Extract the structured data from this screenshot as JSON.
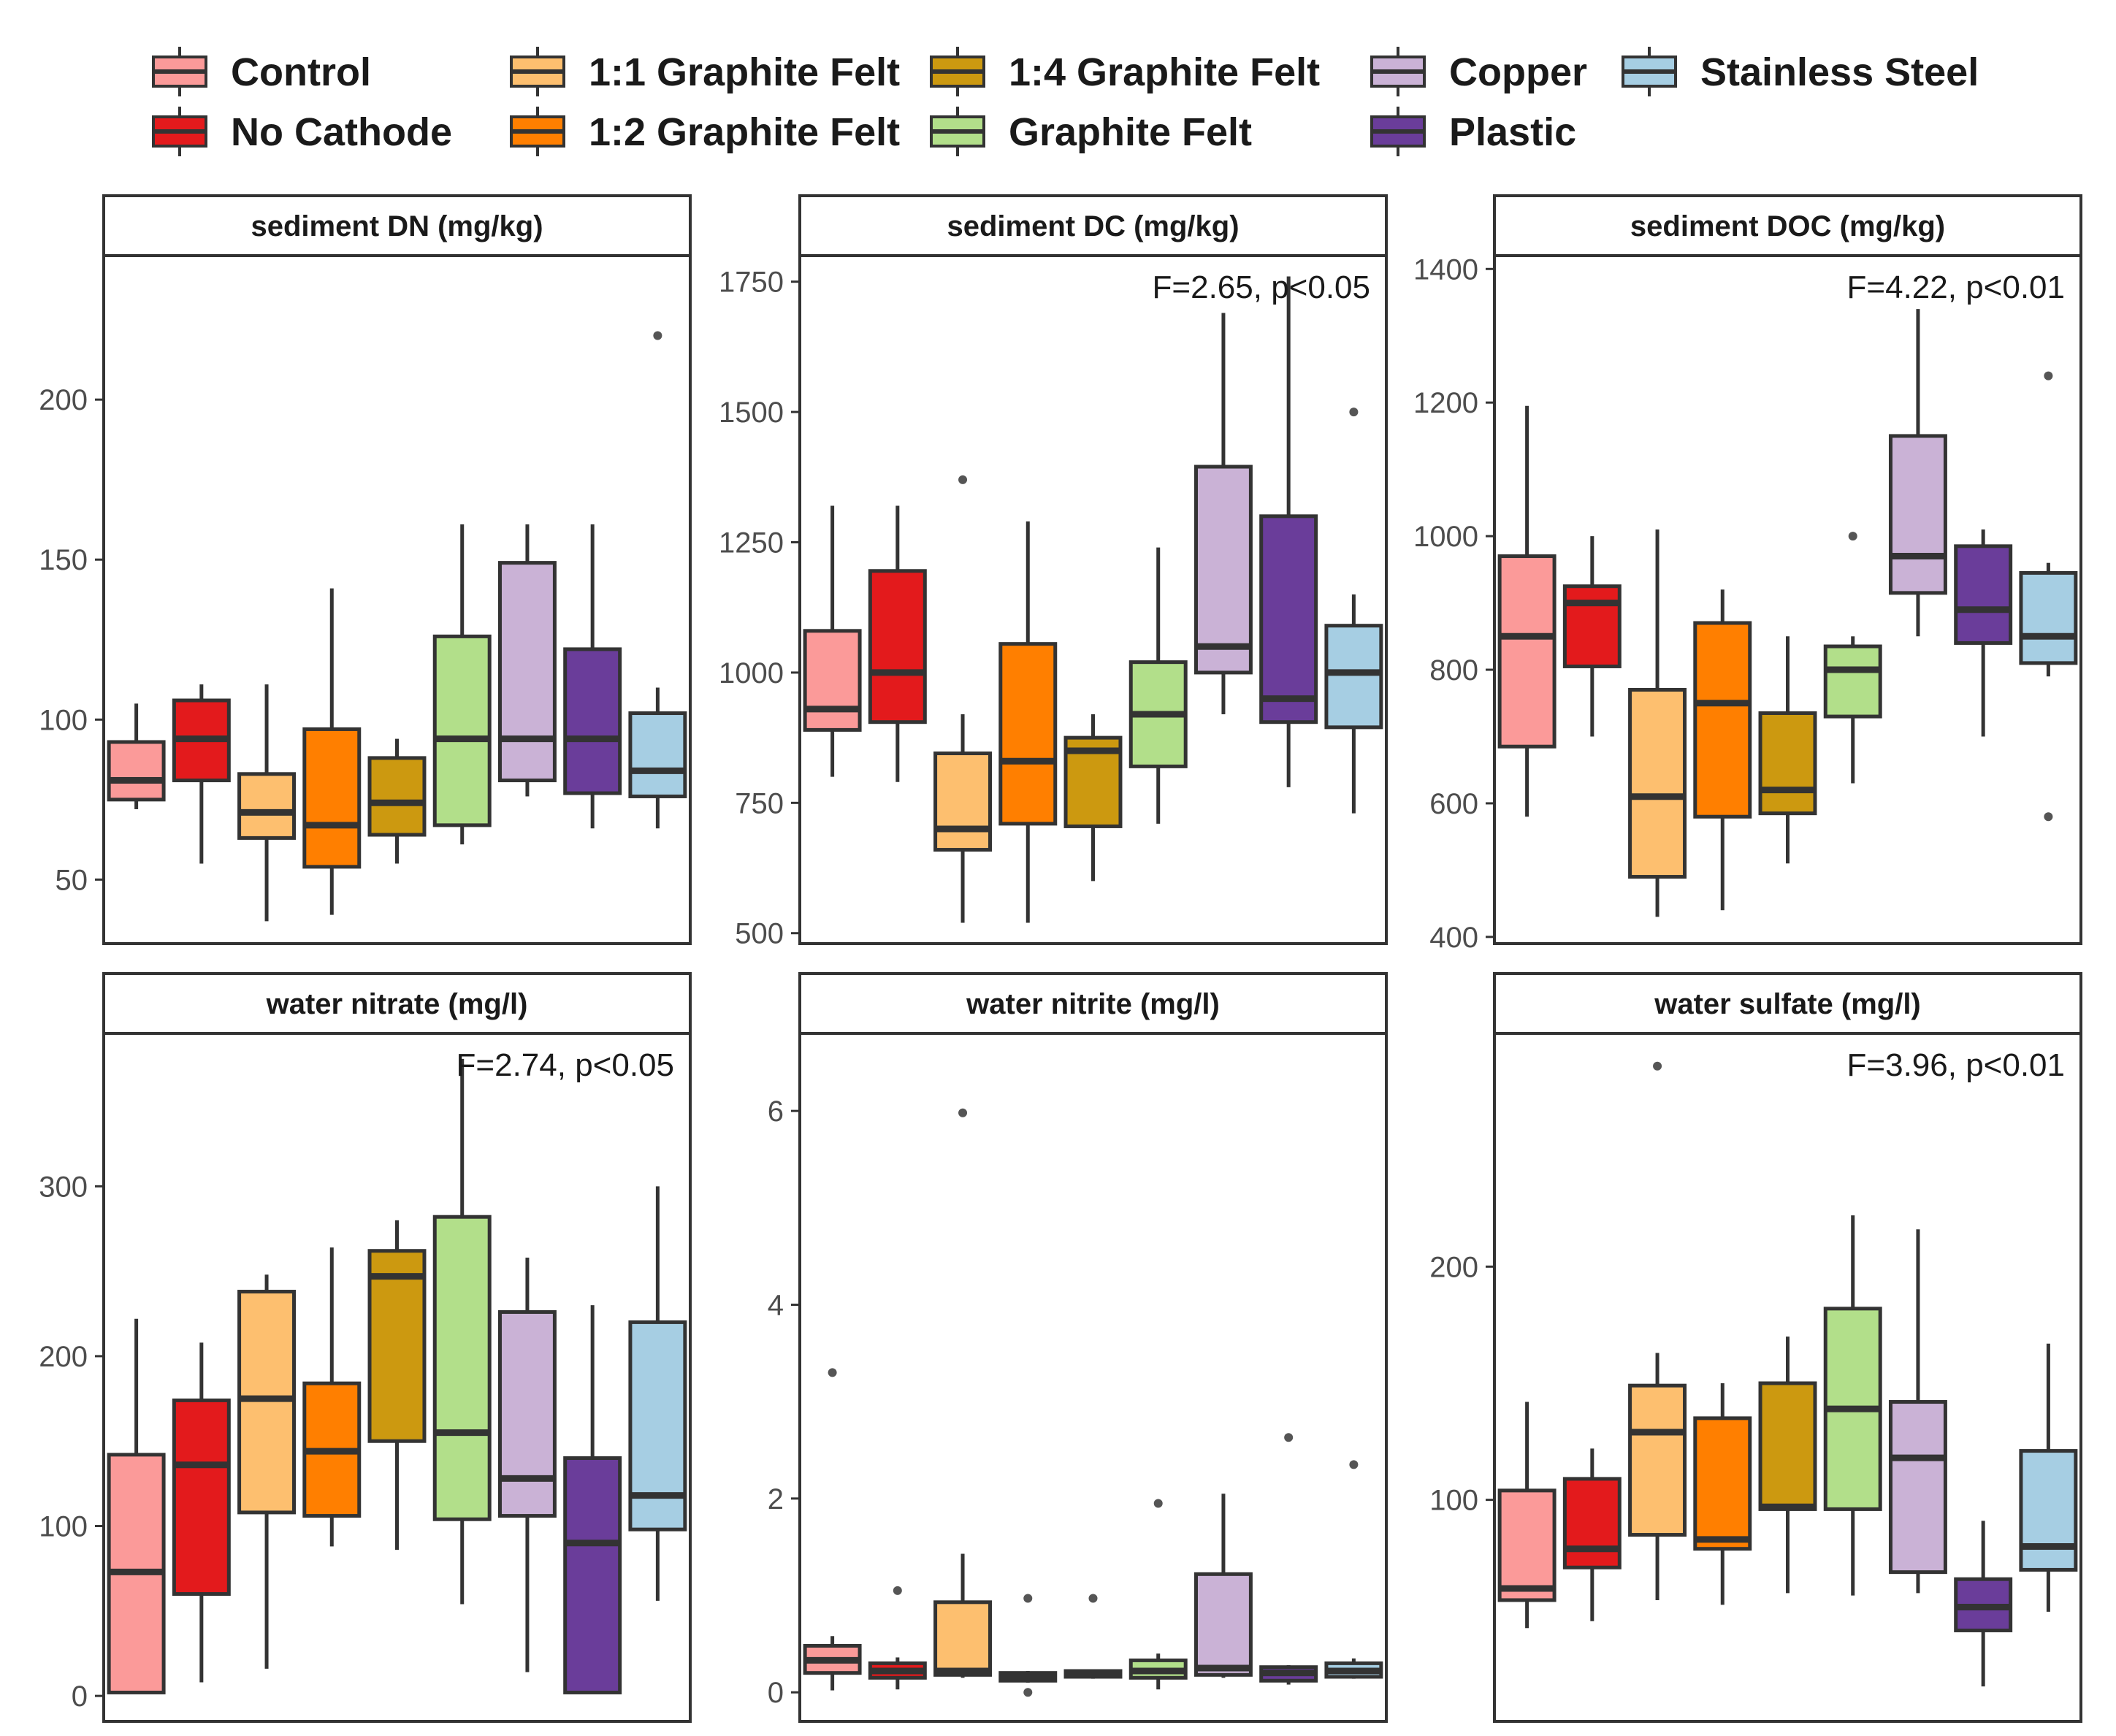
{
  "legend": {
    "items": [
      {
        "label": "Control",
        "color": "#FB9A99"
      },
      {
        "label": "No Cathode",
        "color": "#E31A1C"
      },
      {
        "label": "1:1 Graphite Felt",
        "color": "#FDBF6F"
      },
      {
        "label": "1:2 Graphite Felt",
        "color": "#FF7F00"
      },
      {
        "label": "1:4 Graphite Felt",
        "color": "#CC9910"
      },
      {
        "label": "Graphite Felt",
        "color": "#B2DF8A"
      },
      {
        "label": "Copper",
        "color": "#CAB2D6"
      },
      {
        "label": "Plastic",
        "color": "#6A3D9A"
      },
      {
        "label": "Stainless Steel",
        "color": "#A6CEE3"
      }
    ]
  },
  "chart_data": [
    {
      "type": "boxplot",
      "title": "sediment DN (mg/kg)",
      "annotation": "",
      "ylim": [
        30,
        245
      ],
      "yticks": [
        50,
        100,
        150,
        200
      ],
      "boxes": [
        {
          "group": "Control",
          "min": 72,
          "q1": 75,
          "median": 81,
          "q3": 93,
          "max": 105,
          "outliers": []
        },
        {
          "group": "No Cathode",
          "min": 55,
          "q1": 81,
          "median": 94,
          "q3": 106,
          "max": 111,
          "outliers": []
        },
        {
          "group": "1:1 Graphite Felt",
          "min": 37,
          "q1": 63,
          "median": 71,
          "q3": 83,
          "max": 111,
          "outliers": []
        },
        {
          "group": "1:2 Graphite Felt",
          "min": 39,
          "q1": 54,
          "median": 67,
          "q3": 97,
          "max": 141,
          "outliers": []
        },
        {
          "group": "1:4 Graphite Felt",
          "min": 55,
          "q1": 64,
          "median": 74,
          "q3": 88,
          "max": 94,
          "outliers": []
        },
        {
          "group": "Graphite Felt",
          "min": 61,
          "q1": 67,
          "median": 94,
          "q3": 126,
          "max": 161,
          "outliers": []
        },
        {
          "group": "Copper",
          "min": 76,
          "q1": 81,
          "median": 94,
          "q3": 149,
          "max": 161,
          "outliers": []
        },
        {
          "group": "Plastic",
          "min": 66,
          "q1": 77,
          "median": 94,
          "q3": 122,
          "max": 161,
          "outliers": []
        },
        {
          "group": "Stainless Steel",
          "min": 66,
          "q1": 76,
          "median": 84,
          "q3": 102,
          "max": 110,
          "outliers": [
            220
          ]
        }
      ]
    },
    {
      "type": "boxplot",
      "title": "sediment DC (mg/kg)",
      "annotation": "F=2.65, p<0.05",
      "ylim": [
        480,
        1800
      ],
      "yticks": [
        500,
        750,
        1000,
        1250,
        1500,
        1750
      ],
      "boxes": [
        {
          "group": "Control",
          "min": 800,
          "q1": 890,
          "median": 930,
          "q3": 1080,
          "max": 1320,
          "outliers": []
        },
        {
          "group": "No Cathode",
          "min": 790,
          "q1": 905,
          "median": 1000,
          "q3": 1195,
          "max": 1320,
          "outliers": []
        },
        {
          "group": "1:1 Graphite Felt",
          "min": 520,
          "q1": 660,
          "median": 700,
          "q3": 845,
          "max": 920,
          "outliers": [
            1370
          ]
        },
        {
          "group": "1:2 Graphite Felt",
          "min": 520,
          "q1": 710,
          "median": 830,
          "q3": 1055,
          "max": 1290,
          "outliers": []
        },
        {
          "group": "1:4 Graphite Felt",
          "min": 600,
          "q1": 705,
          "median": 850,
          "q3": 875,
          "max": 920,
          "outliers": []
        },
        {
          "group": "Graphite Felt",
          "min": 710,
          "q1": 820,
          "median": 920,
          "q3": 1020,
          "max": 1240,
          "outliers": []
        },
        {
          "group": "Copper",
          "min": 920,
          "q1": 1000,
          "median": 1050,
          "q3": 1395,
          "max": 1690,
          "outliers": []
        },
        {
          "group": "Plastic",
          "min": 780,
          "q1": 905,
          "median": 950,
          "q3": 1300,
          "max": 1760,
          "outliers": []
        },
        {
          "group": "Stainless Steel",
          "min": 730,
          "q1": 895,
          "median": 1000,
          "q3": 1090,
          "max": 1150,
          "outliers": [
            1500
          ]
        }
      ]
    },
    {
      "type": "boxplot",
      "title": "sediment DOC (mg/kg)",
      "annotation": "F=4.22, p<0.01",
      "ylim": [
        390,
        1420
      ],
      "yticks": [
        400,
        600,
        800,
        1000,
        1200,
        1400
      ],
      "boxes": [
        {
          "group": "Control",
          "min": 580,
          "q1": 685,
          "median": 850,
          "q3": 970,
          "max": 1195,
          "outliers": []
        },
        {
          "group": "No Cathode",
          "min": 700,
          "q1": 805,
          "median": 900,
          "q3": 925,
          "max": 1000,
          "outliers": []
        },
        {
          "group": "1:1 Graphite Felt",
          "min": 430,
          "q1": 490,
          "median": 610,
          "q3": 770,
          "max": 1010,
          "outliers": []
        },
        {
          "group": "1:2 Graphite Felt",
          "min": 440,
          "q1": 580,
          "median": 750,
          "q3": 870,
          "max": 920,
          "outliers": []
        },
        {
          "group": "1:4 Graphite Felt",
          "min": 510,
          "q1": 585,
          "median": 620,
          "q3": 735,
          "max": 850,
          "outliers": []
        },
        {
          "group": "Graphite Felt",
          "min": 630,
          "q1": 730,
          "median": 800,
          "q3": 835,
          "max": 850,
          "outliers": [
            1000
          ]
        },
        {
          "group": "Copper",
          "min": 850,
          "q1": 915,
          "median": 970,
          "q3": 1150,
          "max": 1340,
          "outliers": []
        },
        {
          "group": "Plastic",
          "min": 700,
          "q1": 840,
          "median": 890,
          "q3": 985,
          "max": 1010,
          "outliers": []
        },
        {
          "group": "Stainless Steel",
          "min": 790,
          "q1": 810,
          "median": 850,
          "q3": 945,
          "max": 960,
          "outliers": [
            1240,
            580
          ]
        }
      ]
    },
    {
      "type": "boxplot",
      "title": "water nitrate (mg/l)",
      "annotation": "F=2.74, p<0.05",
      "ylim": [
        -15,
        390
      ],
      "yticks": [
        0,
        100,
        200,
        300
      ],
      "boxes": [
        {
          "group": "Control",
          "min": 2,
          "q1": 2,
          "median": 73,
          "q3": 142,
          "max": 222,
          "outliers": []
        },
        {
          "group": "No Cathode",
          "min": 8,
          "q1": 60,
          "median": 136,
          "q3": 174,
          "max": 208,
          "outliers": []
        },
        {
          "group": "1:1 Graphite Felt",
          "min": 16,
          "q1": 108,
          "median": 175,
          "q3": 238,
          "max": 248,
          "outliers": []
        },
        {
          "group": "1:2 Graphite Felt",
          "min": 88,
          "q1": 106,
          "median": 144,
          "q3": 184,
          "max": 264,
          "outliers": []
        },
        {
          "group": "1:4 Graphite Felt",
          "min": 86,
          "q1": 150,
          "median": 247,
          "q3": 262,
          "max": 280,
          "outliers": []
        },
        {
          "group": "Graphite Felt",
          "min": 54,
          "q1": 104,
          "median": 155,
          "q3": 282,
          "max": 375,
          "outliers": []
        },
        {
          "group": "Copper",
          "min": 14,
          "q1": 106,
          "median": 128,
          "q3": 226,
          "max": 258,
          "outliers": []
        },
        {
          "group": "Plastic",
          "min": 2,
          "q1": 2,
          "median": 90,
          "q3": 140,
          "max": 230,
          "outliers": []
        },
        {
          "group": "Stainless Steel",
          "min": 56,
          "q1": 98,
          "median": 118,
          "q3": 220,
          "max": 300,
          "outliers": []
        }
      ]
    },
    {
      "type": "boxplot",
      "title": "water nitrite (mg/l)",
      "annotation": "",
      "ylim": [
        -0.3,
        6.8
      ],
      "yticks": [
        0,
        2,
        4,
        6
      ],
      "boxes": [
        {
          "group": "Control",
          "min": 0.02,
          "q1": 0.2,
          "median": 0.33,
          "q3": 0.48,
          "max": 0.58,
          "outliers": [
            3.3
          ]
        },
        {
          "group": "No Cathode",
          "min": 0.03,
          "q1": 0.15,
          "median": 0.22,
          "q3": 0.3,
          "max": 0.36,
          "outliers": [
            1.05
          ]
        },
        {
          "group": "1:1 Graphite Felt",
          "min": 0.15,
          "q1": 0.18,
          "median": 0.22,
          "q3": 0.93,
          "max": 1.43,
          "outliers": [
            5.98
          ]
        },
        {
          "group": "1:2 Graphite Felt",
          "min": 0.1,
          "q1": 0.12,
          "median": 0.16,
          "q3": 0.2,
          "max": 0.22,
          "outliers": [
            0.97,
            0.0
          ]
        },
        {
          "group": "1:4 Graphite Felt",
          "min": 0.14,
          "q1": 0.16,
          "median": 0.19,
          "q3": 0.22,
          "max": 0.23,
          "outliers": [
            0.97
          ]
        },
        {
          "group": "Graphite Felt",
          "min": 0.03,
          "q1": 0.15,
          "median": 0.22,
          "q3": 0.33,
          "max": 0.4,
          "outliers": [
            1.95
          ]
        },
        {
          "group": "Copper",
          "min": 0.15,
          "q1": 0.18,
          "median": 0.25,
          "q3": 1.22,
          "max": 2.05,
          "outliers": []
        },
        {
          "group": "Plastic",
          "min": 0.08,
          "q1": 0.12,
          "median": 0.2,
          "q3": 0.26,
          "max": 0.28,
          "outliers": [
            2.63
          ]
        },
        {
          "group": "Stainless Steel",
          "min": 0.14,
          "q1": 0.16,
          "median": 0.22,
          "q3": 0.3,
          "max": 0.35,
          "outliers": [
            2.35
          ]
        }
      ]
    },
    {
      "type": "boxplot",
      "title": "water sulfate (mg/l)",
      "annotation": "F=3.96, p<0.01",
      "ylim": [
        5,
        300
      ],
      "yticks": [
        100,
        200
      ],
      "boxes": [
        {
          "group": "Control",
          "min": 45,
          "q1": 57,
          "median": 62,
          "q3": 104,
          "max": 142,
          "outliers": []
        },
        {
          "group": "No Cathode",
          "min": 48,
          "q1": 71,
          "median": 79,
          "q3": 109,
          "max": 122,
          "outliers": []
        },
        {
          "group": "1:1 Graphite Felt",
          "min": 57,
          "q1": 85,
          "median": 129,
          "q3": 149,
          "max": 163,
          "outliers": [
            286
          ]
        },
        {
          "group": "1:2 Graphite Felt",
          "min": 55,
          "q1": 79,
          "median": 83,
          "q3": 135,
          "max": 150,
          "outliers": []
        },
        {
          "group": "1:4 Graphite Felt",
          "min": 60,
          "q1": 96,
          "median": 97,
          "q3": 150,
          "max": 170,
          "outliers": []
        },
        {
          "group": "Graphite Felt",
          "min": 59,
          "q1": 96,
          "median": 139,
          "q3": 182,
          "max": 222,
          "outliers": []
        },
        {
          "group": "Copper",
          "min": 60,
          "q1": 69,
          "median": 118,
          "q3": 142,
          "max": 216,
          "outliers": []
        },
        {
          "group": "Plastic",
          "min": 20,
          "q1": 44,
          "median": 54,
          "q3": 66,
          "max": 91,
          "outliers": []
        },
        {
          "group": "Stainless Steel",
          "min": 52,
          "q1": 70,
          "median": 80,
          "q3": 121,
          "max": 167,
          "outliers": []
        }
      ]
    }
  ]
}
